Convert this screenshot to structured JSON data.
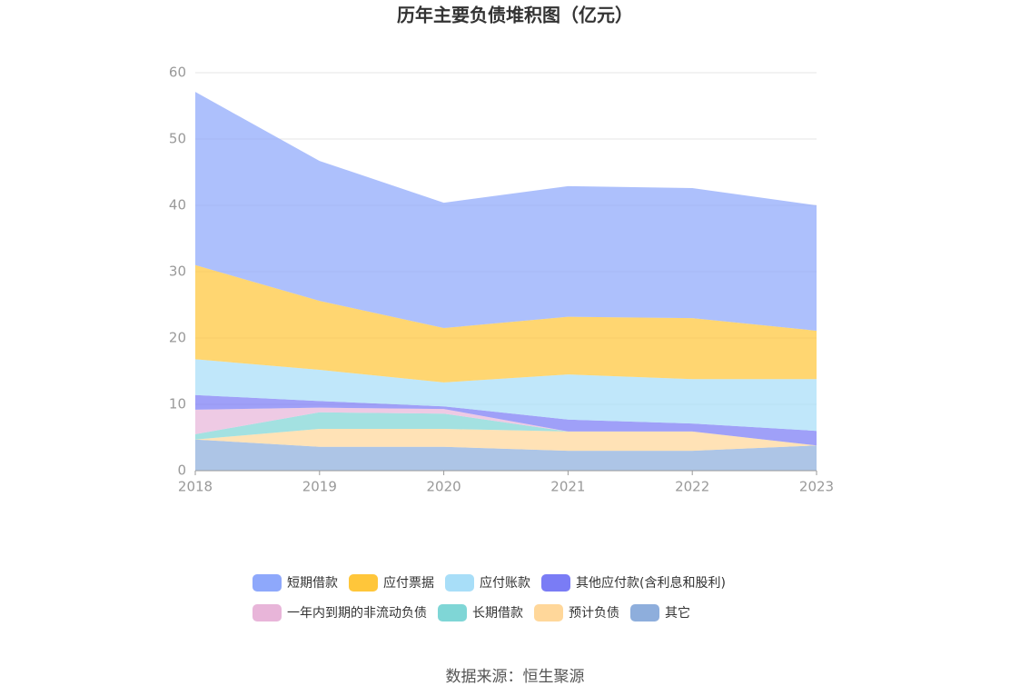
{
  "chart_data": {
    "type": "stacked_area",
    "title": "历年主要负债堆积图（亿元）",
    "categories": [
      "2018",
      "2019",
      "2020",
      "2021",
      "2022",
      "2023"
    ],
    "series": [
      {
        "name": "短期借款",
        "color": "#8ea8fb",
        "values": [
          26.1,
          21.1,
          18.9,
          19.7,
          19.6,
          18.9
        ]
      },
      {
        "name": "应付票据",
        "color": "#ffc63a",
        "values": [
          14.2,
          10.4,
          8.2,
          8.7,
          9.2,
          7.3
        ]
      },
      {
        "name": "应付账款",
        "color": "#a8def8",
        "values": [
          5.4,
          4.7,
          3.6,
          6.8,
          6.7,
          7.8
        ]
      },
      {
        "name": "其他应付款(含利息和股利)",
        "color": "#7a7cf5",
        "values": [
          2.2,
          1.0,
          0.4,
          1.8,
          1.2,
          2.2
        ]
      },
      {
        "name": "一年内到期的非流动负债",
        "color": "#e8b5d9",
        "values": [
          3.7,
          0.7,
          0.7,
          0,
          0,
          0
        ]
      },
      {
        "name": "长期借款",
        "color": "#7fd6d6",
        "values": [
          0.8,
          2.5,
          2.3,
          0,
          0,
          0
        ]
      },
      {
        "name": "预计负债",
        "color": "#ffd79a",
        "values": [
          0,
          2.7,
          2.7,
          2.9,
          2.9,
          0
        ]
      },
      {
        "name": "其它",
        "color": "#8eaedc",
        "values": [
          4.7,
          3.6,
          3.6,
          3.0,
          3.0,
          3.8
        ]
      }
    ],
    "ylim": [
      0,
      60
    ],
    "yticks": [
      0,
      10,
      20,
      30,
      40,
      50,
      60
    ],
    "grid": true,
    "source": "数据来源：恒生聚源"
  }
}
